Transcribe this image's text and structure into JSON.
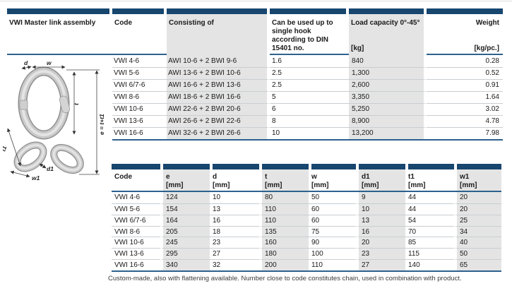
{
  "title": "VWI Master link assembly",
  "footer_note": "Custom-made, also with flattening available. Number close to code constitutes chain, used in combination with product.",
  "colors": {
    "navy": "#17466f",
    "band_gray": "#e4e4e4",
    "rule_blue": "#2d618e",
    "row_rule": "#c9ced2"
  },
  "diagram": {
    "labels": {
      "d": "d",
      "w": "w",
      "t": "t",
      "e": "e = t+t1",
      "t1": "t1",
      "d1": "d1",
      "w1": "w1"
    }
  },
  "table1": {
    "headers": [
      {
        "label": "VWI Master link assembly",
        "unit": ""
      },
      {
        "label": "Code",
        "unit": ""
      },
      {
        "label": "Consisting of",
        "unit": ""
      },
      {
        "label": "Can be used up to single hook according to DIN 15401 no.",
        "unit": ""
      },
      {
        "label": "Load capacity 0°-45°",
        "unit": "[kg]"
      },
      {
        "label": "Weight",
        "unit": "[kg/pc.]"
      }
    ],
    "rows": [
      {
        "code": "VWI 4-6",
        "consisting": "AWI 10-6 + 2 BWI 9-6",
        "din": "1.6",
        "load": "840",
        "weight": "0.28"
      },
      {
        "code": "VWI 5-6",
        "consisting": "AWI 13-6 + 2 BWI 10-6",
        "din": "2.5",
        "load": "1,300",
        "weight": "0.52"
      },
      {
        "code": "VWI 6/7-6",
        "consisting": "AWI 16-6 + 2 BWI 13-6",
        "din": "2.5",
        "load": "2,600",
        "weight": "0.91"
      },
      {
        "code": "VWI 8-6",
        "consisting": "AWI 18-6 + 2 BWI 16-6",
        "din": "5",
        "load": "3,350",
        "weight": "1.64"
      },
      {
        "code": "VWI 10-6",
        "consisting": "AWI 22-6 + 2 BWI 20-6",
        "din": "6",
        "load": "5,250",
        "weight": "3.02"
      },
      {
        "code": "VWI 13-6",
        "consisting": "AWI 26-6 + 2 BWI 22-6",
        "din": "8",
        "load": "8,900",
        "weight": "4.78"
      },
      {
        "code": "VWI 16-6",
        "consisting": "AWI 32-6 + 2 BWI 26-6",
        "din": "10",
        "load": "13,200",
        "weight": "7.98"
      }
    ]
  },
  "table2": {
    "headers": [
      {
        "label": "Code",
        "unit": ""
      },
      {
        "label": "e",
        "unit": "[mm]"
      },
      {
        "label": "d",
        "unit": "[mm]"
      },
      {
        "label": "t",
        "unit": "[mm]"
      },
      {
        "label": "w",
        "unit": "[mm]"
      },
      {
        "label": "d1",
        "unit": "[mm]"
      },
      {
        "label": "t1",
        "unit": "[mm]"
      },
      {
        "label": "w1",
        "unit": "[mm]"
      }
    ],
    "rows": [
      {
        "code": "VWI 4-6",
        "e": "124",
        "d": "10",
        "t": "80",
        "w": "50",
        "d1": "9",
        "t1": "44",
        "w1": "20"
      },
      {
        "code": "VWI 5-6",
        "e": "154",
        "d": "13",
        "t": "110",
        "w": "60",
        "d1": "10",
        "t1": "44",
        "w1": "20"
      },
      {
        "code": "VWI 6/7-6",
        "e": "164",
        "d": "16",
        "t": "110",
        "w": "60",
        "d1": "13",
        "t1": "54",
        "w1": "25"
      },
      {
        "code": "VWI 8-6",
        "e": "205",
        "d": "18",
        "t": "135",
        "w": "75",
        "d1": "16",
        "t1": "70",
        "w1": "34"
      },
      {
        "code": "VWI 10-6",
        "e": "245",
        "d": "23",
        "t": "160",
        "w": "90",
        "d1": "20",
        "t1": "85",
        "w1": "40"
      },
      {
        "code": "VWI 13-6",
        "e": "295",
        "d": "27",
        "t": "180",
        "w": "100",
        "d1": "23",
        "t1": "115",
        "w1": "50"
      },
      {
        "code": "VWI 16-6",
        "e": "340",
        "d": "32",
        "t": "200",
        "w": "110",
        "d1": "27",
        "t1": "140",
        "w1": "65"
      }
    ]
  }
}
